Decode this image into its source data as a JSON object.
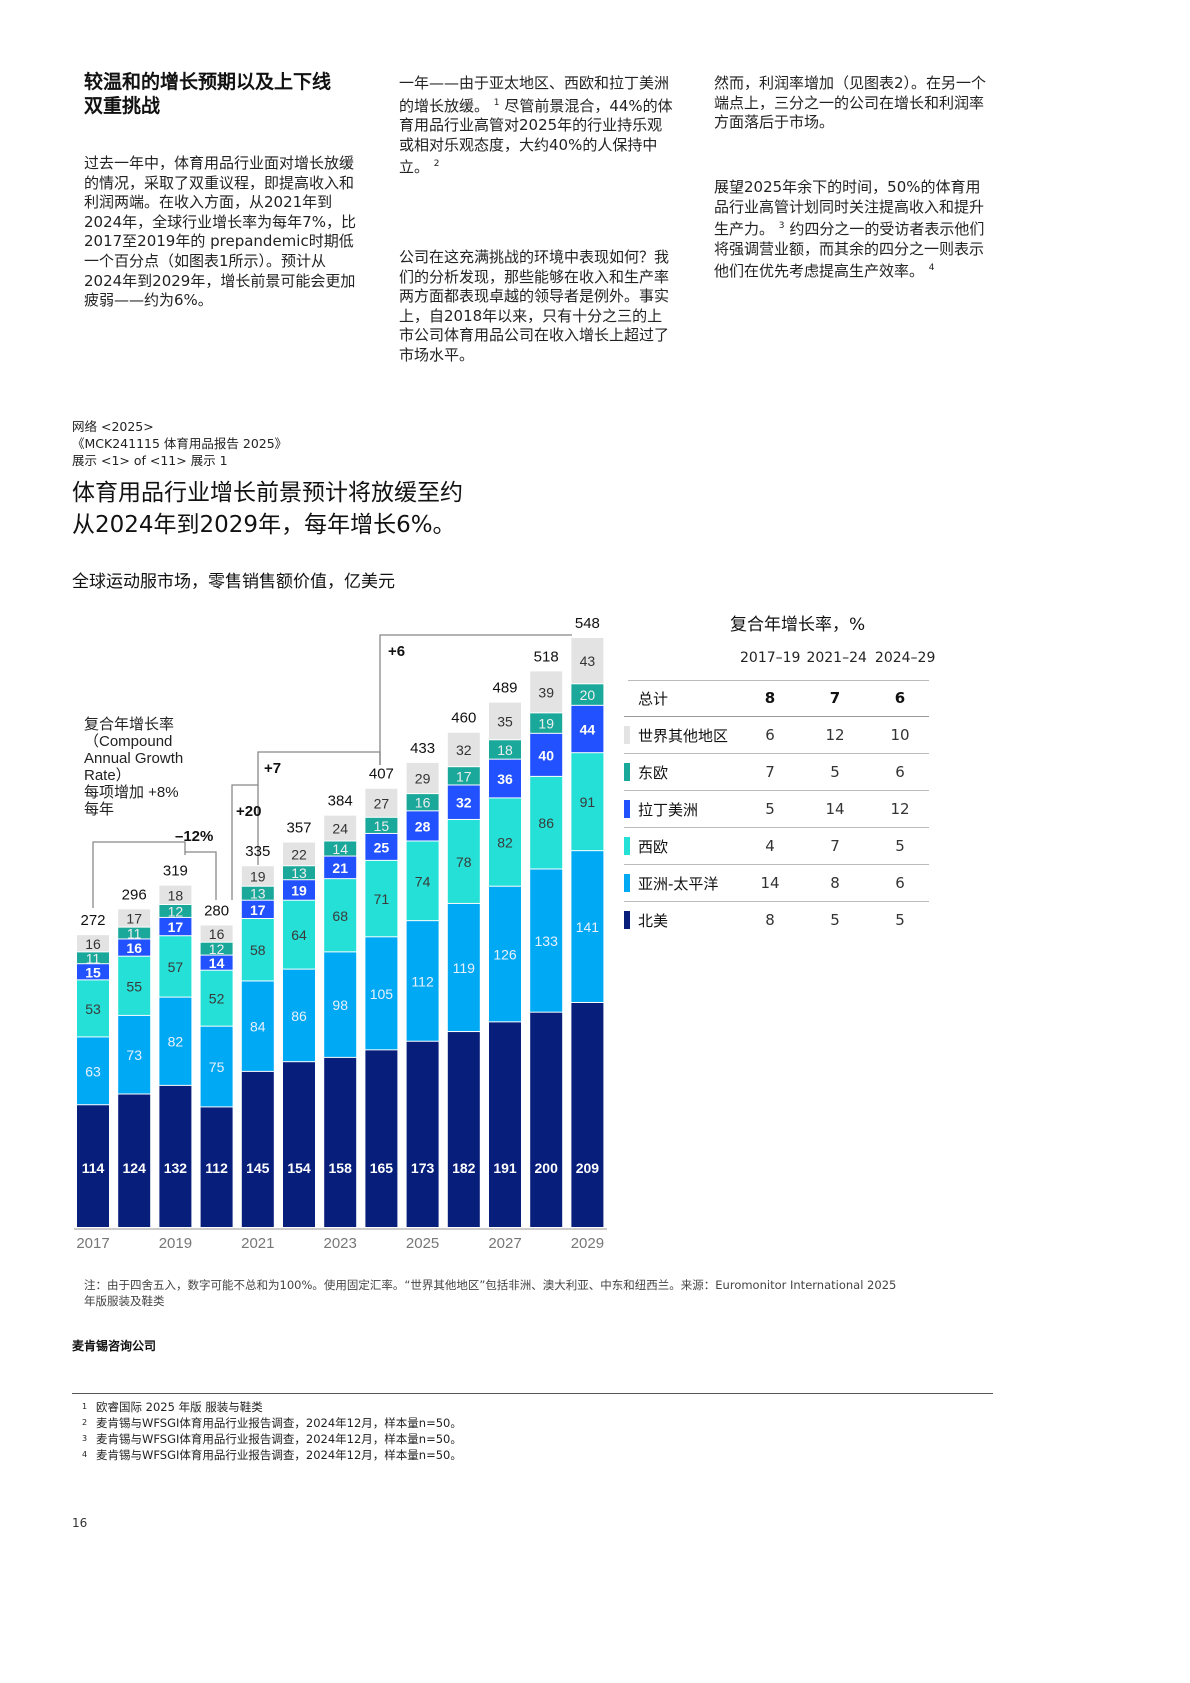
{
  "article": {
    "heading": "较温和的增长预期以及上下线双重挑战",
    "col1_p1": "过去一年中，体育用品行业面对增长放缓的情况，采取了双重议程，即提高收入和利润两端。在收入方面，从2021年到2024年，全球行业增长率为每年7%，比2017至2019年的 prepandemic时期低一个百分点（如图表1所示）。预计从2024年到2029年，增长前景可能会更加疲弱——约为6%。",
    "col2_p1": "一年——由于亚太地区、西欧和拉丁美洲的增长放缓。",
    "col2_p1_sup": "1",
    "col2_p1b": "尽管前景混合，44%的体育用品行业高管对2025年的行业持乐观或相对乐观态度，大约40%的人保持中立。",
    "col2_p1b_sup": "2",
    "col2_p2": "公司在这充满挑战的环境中表现如何？我们的分析发现，那些能够在收入和生产率两方面都表现卓越的领导者是例外。事实上，自2018年以来，只有十分之三的上市公司体育用品公司在收入增长上超过了市场水平。",
    "col3_p1": "然而，利润率增加（见图表2）。在另一个端点上，三分之一的公司在增长和利润率方面落后于市场。",
    "col3_p2a": "展望2025年余下的时间，50%的体育用品行业高管计划同时关注提高收入和提升生产力。",
    "col3_p2a_sup": "3",
    "col3_p2b": "约四分之一的受访者表示他们将强调营业额，而其余的四分之一则表示他们在优先考虑提高生产效率。",
    "col3_p2b_sup": "4"
  },
  "exhibit": {
    "meta1": "网络 <2025>",
    "meta2": "《MCK241115 体育用品报告 2025》",
    "meta3": "展示 <1> of <11> 展示 1",
    "title_line1": "体育用品行业增长前景预计将放缓至约",
    "title_line2": "从2024年到2029年，每年增长6%。",
    "subtitle": "全球运动服市场，零售销售额价值，亿美元",
    "cagr_label_line1": "复合年增长率（Compound Annual Growth Rate）",
    "cagr_label_line2": "每项增加 +8%",
    "cagr_label_line3": "每年",
    "brackets": [
      "+8%",
      "–12%",
      "+20",
      "+7",
      "+6"
    ],
    "note": "注：由于四舍五入，数字可能不总和为100%。使用固定汇率。“世界其他地区”包括非洲、澳大利亚、中东和纽西兰。来源：Euromonitor International 2025年版服装及鞋类",
    "brand": "麦肯锡咨询公司"
  },
  "chart_data": {
    "type": "bar",
    "stacked": true,
    "title": "全球运动服市场，零售销售额价值，亿美元",
    "categories": [
      "2017",
      "2018",
      "2019",
      "2020",
      "2021",
      "2022",
      "2023",
      "2024",
      "2025",
      "2026",
      "2027",
      "2028",
      "2029"
    ],
    "tick_labels": [
      "2017",
      "2019",
      "2021",
      "2023",
      "2025",
      "2027",
      "2029"
    ],
    "totals": [
      272,
      296,
      319,
      280,
      335,
      357,
      384,
      407,
      433,
      460,
      489,
      518,
      548
    ],
    "series": [
      {
        "name": "北美",
        "color": "#071f7a",
        "values": [
          114,
          124,
          132,
          112,
          145,
          154,
          158,
          165,
          173,
          182,
          191,
          200,
          209
        ]
      },
      {
        "name": "亚洲-太平洋",
        "color": "#00a9f4",
        "values": [
          63,
          73,
          82,
          75,
          84,
          86,
          98,
          105,
          112,
          119,
          126,
          133,
          141
        ]
      },
      {
        "name": "西欧",
        "color": "#24e0d6",
        "values": [
          53,
          55,
          57,
          52,
          58,
          64,
          68,
          71,
          74,
          78,
          82,
          86,
          91
        ]
      },
      {
        "name": "拉丁美洲",
        "color": "#2251ff",
        "values": [
          15,
          16,
          17,
          14,
          17,
          19,
          21,
          25,
          28,
          32,
          36,
          40,
          44
        ]
      },
      {
        "name": "东欧",
        "color": "#1aa89a",
        "values": [
          11,
          11,
          12,
          12,
          13,
          13,
          14,
          15,
          16,
          17,
          18,
          19,
          20
        ]
      },
      {
        "name": "世界其他地区",
        "color": "#e3e3e3",
        "values": [
          16,
          17,
          18,
          16,
          19,
          22,
          24,
          27,
          29,
          32,
          35,
          39,
          43
        ]
      }
    ],
    "ylim": [
      0,
      560
    ],
    "grid": false
  },
  "cagr_table": {
    "title": "复合年增长率，%",
    "headers": [
      "2017–19",
      "2021–24",
      "2024–29"
    ],
    "rows": [
      {
        "label": "总计",
        "color": "",
        "values": [
          "8",
          "7",
          "6"
        ]
      },
      {
        "label": "世界其他地区",
        "color": "#e3e3e3",
        "values": [
          "6",
          "12",
          "10"
        ]
      },
      {
        "label": "东欧",
        "color": "#1aa89a",
        "values": [
          "7",
          "5",
          "6"
        ]
      },
      {
        "label": "拉丁美洲",
        "color": "#2251ff",
        "values": [
          "5",
          "14",
          "12"
        ]
      },
      {
        "label": "西欧",
        "color": "#24e0d6",
        "values": [
          "4",
          "7",
          "5"
        ]
      },
      {
        "label": "亚洲-太平洋",
        "color": "#00a9f4",
        "values": [
          "14",
          "8",
          "6"
        ]
      },
      {
        "label": "北美",
        "color": "#071f7a",
        "values": [
          "8",
          "5",
          "5"
        ]
      }
    ]
  },
  "footnotes": [
    {
      "n": "1",
      "text": "欧睿国际 2025 年版 服装与鞋类"
    },
    {
      "n": "2",
      "text": "麦肯锡与WFSGI体育用品行业报告调查，2024年12月，样本量n=50。"
    },
    {
      "n": "3",
      "text": "麦肯锡与WFSGI体育用品行业报告调查，2024年12月，样本量n=50。"
    },
    {
      "n": "4",
      "text": "麦肯锡与WFSGI体育用品行业报告调查，2024年12月，样本量n=50。"
    }
  ],
  "page_number": "16"
}
